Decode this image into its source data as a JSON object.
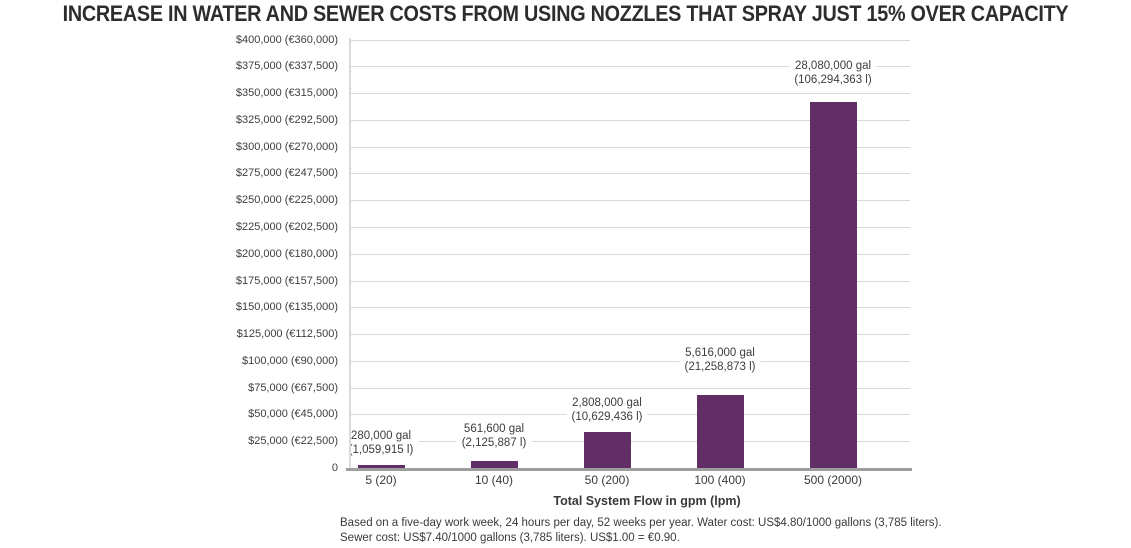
{
  "title": "INCREASE IN WATER AND SEWER COSTS FROM USING NOZZLES THAT SPRAY JUST 15% OVER CAPACITY",
  "chart_data": {
    "type": "bar",
    "title": "INCREASE IN WATER AND SEWER COSTS FROM USING NOZZLES THAT SPRAY JUST 15% OVER CAPACITY",
    "xlabel": "Total System Flow in gpm (lpm)",
    "ylabel": "",
    "ylim": [
      0,
      400000
    ],
    "grid": true,
    "legend": "none",
    "bar_color": "#612e66",
    "categories": [
      "5 (20)",
      "10 (40)",
      "50 (200)",
      "100 (400)",
      "500 (2000)"
    ],
    "values_usd": [
      3416,
      6852,
      34258,
      68515,
      342576
    ],
    "bar_labels": [
      [
        "280,000 gal",
        "(1,059,915 l)"
      ],
      [
        "561,600 gal",
        "(2,125,887 l)"
      ],
      [
        "2,808,000 gal",
        "(10,629,436 l)"
      ],
      [
        "5,616,000 gal",
        "(21,258,873 l)"
      ],
      [
        "28,080,000 gal",
        "(106,294,363 l)"
      ]
    ],
    "y_ticks": [
      {
        "label": "$400,000 (€360,000)",
        "value": 400000
      },
      {
        "label": "$375,000 (€337,500)",
        "value": 375000
      },
      {
        "label": "$350,000 (€315,000)",
        "value": 350000
      },
      {
        "label": "$325,000 (€292,500)",
        "value": 325000
      },
      {
        "label": "$300,000 (€270,000)",
        "value": 300000
      },
      {
        "label": "$275,000 (€247,500)",
        "value": 275000
      },
      {
        "label": "$250,000 (€225,000)",
        "value": 250000
      },
      {
        "label": "$225,000 (€202,500)",
        "value": 225000
      },
      {
        "label": "$200,000 (€180,000)",
        "value": 200000
      },
      {
        "label": "$175,000 (€157,500)",
        "value": 175000
      },
      {
        "label": "$150,000 (€135,000)",
        "value": 150000
      },
      {
        "label": "$125,000 (€112,500)",
        "value": 125000
      },
      {
        "label": "$100,000 (€90,000)",
        "value": 100000
      },
      {
        "label": "$75,000 (€67,500)",
        "value": 75000
      },
      {
        "label": "$50,000 (€45,000)",
        "value": 50000
      },
      {
        "label": "$25,000 (€22,500)",
        "value": 25000
      },
      {
        "label": "0",
        "value": 0
      }
    ]
  },
  "footnote": {
    "line1": "Based on a five-day work week, 24 hours per day, 52 weeks per year. Water cost: US$4.80/1000 gallons (3,785 liters).",
    "line2": "Sewer cost: US$7.40/1000 gallons (3,785 liters). US$1.00 = €0.90."
  }
}
